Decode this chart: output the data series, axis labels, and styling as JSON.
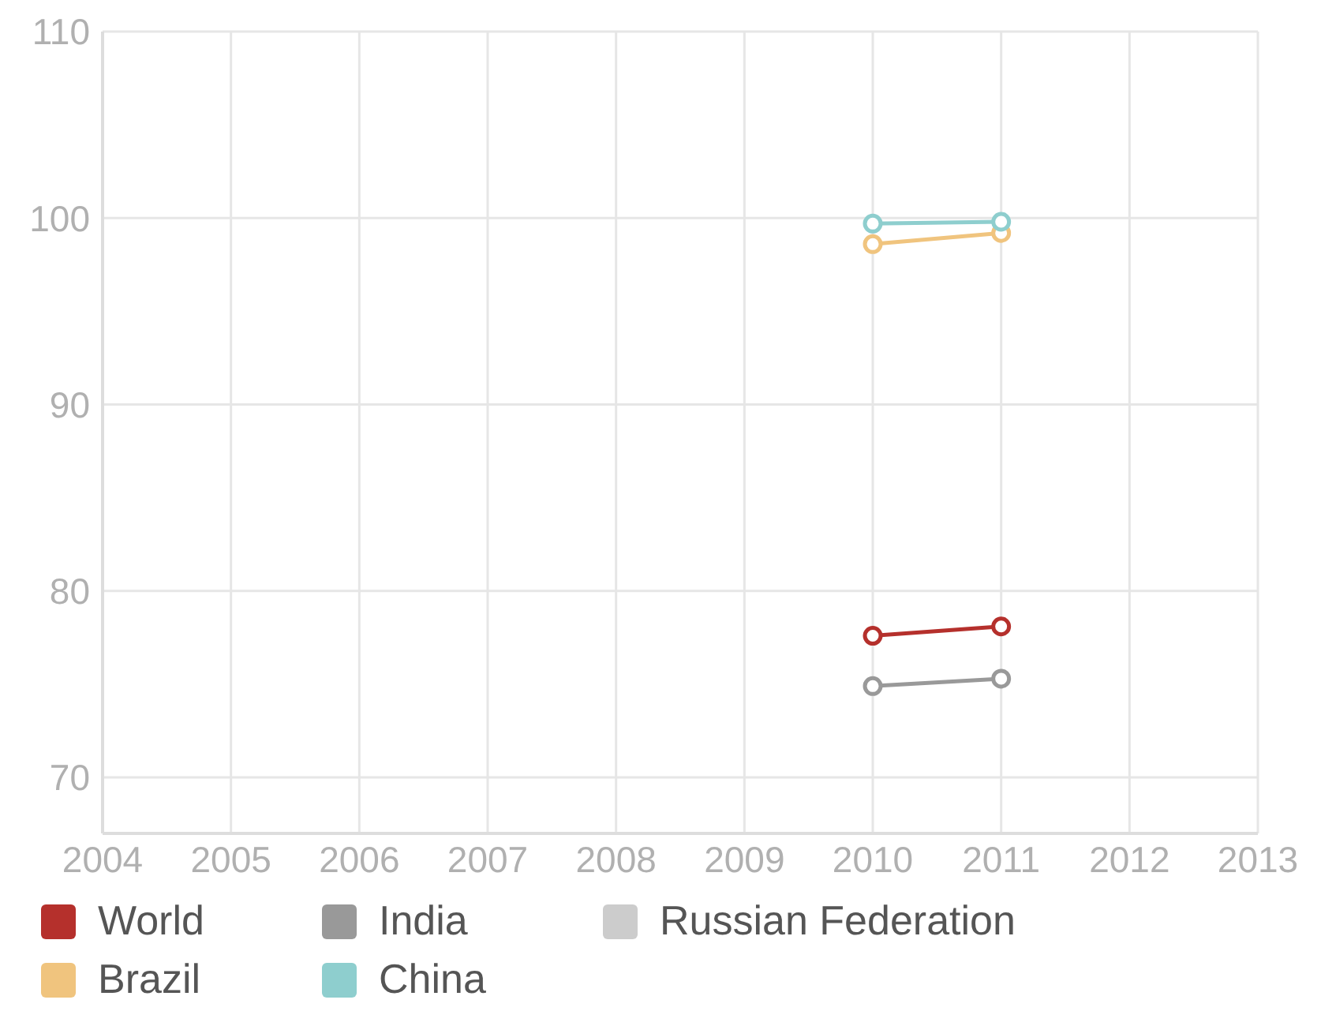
{
  "chart_data": {
    "type": "line",
    "x": [
      2010,
      2011
    ],
    "series": [
      {
        "name": "World",
        "color": "#b5302c",
        "values": [
          77.6,
          78.1
        ]
      },
      {
        "name": "India",
        "color": "#999999",
        "values": [
          74.9,
          75.3
        ]
      },
      {
        "name": "Russian Federation",
        "color": "#cccccc",
        "values": [
          null,
          null
        ]
      },
      {
        "name": "Brazil",
        "color": "#f0c47e",
        "values": [
          98.6,
          99.2
        ]
      },
      {
        "name": "China",
        "color": "#8ecece",
        "values": [
          99.7,
          99.8
        ]
      }
    ],
    "xlim": [
      2004,
      2013
    ],
    "xticks": [
      2004,
      2005,
      2006,
      2007,
      2008,
      2009,
      2010,
      2011,
      2012,
      2013
    ],
    "ylim": [
      67,
      110
    ],
    "yticks": [
      70,
      80,
      90,
      100,
      110
    ],
    "grid": true,
    "legend": "bottom left",
    "marker": "circle",
    "line_style": "solid"
  }
}
